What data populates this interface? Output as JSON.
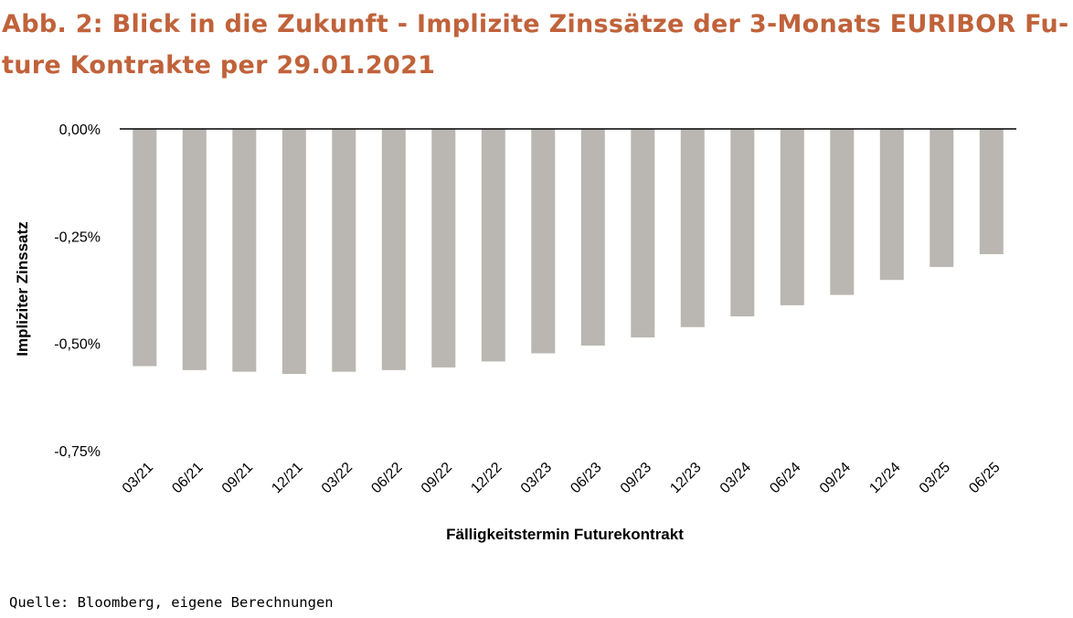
{
  "title_line1": "Abb. 2: Blick in die Zukunft - Implizite Zinssätze der 3-Monats EURIBOR Fu-",
  "title_line2": "ture Kontrakte per 29.01.2021",
  "source": "Quelle: Bloomberg, eigene Berechnungen",
  "colors": {
    "title": "#c0623a",
    "bar": "#bab6b1",
    "axis": "#000000"
  },
  "chart_data": {
    "type": "bar",
    "title": "Abb. 2: Blick in die Zukunft - Implizite Zinssätze der 3-Monats EURIBOR Future Kontrakte per 29.01.2021",
    "xlabel": "Fälligkeitstermin Futurekontrakt",
    "ylabel": "Impliziter Zinssatz",
    "ylim": [
      -0.75,
      0
    ],
    "yticks": [
      0,
      -0.25,
      -0.5,
      -0.75
    ],
    "ytick_labels": [
      "0,00%",
      "-0,25%",
      "-0,50%",
      "-0,75%"
    ],
    "grid": false,
    "legend": "none",
    "categories": [
      "03/21",
      "06/21",
      "09/21",
      "12/21",
      "03/22",
      "06/22",
      "09/22",
      "12/22",
      "03/23",
      "06/23",
      "09/23",
      "12/23",
      "03/24",
      "06/24",
      "09/24",
      "12/24",
      "03/25",
      "06/25"
    ],
    "series": [
      {
        "values": [
          -0.553,
          -0.562,
          -0.566,
          -0.571,
          -0.566,
          -0.562,
          -0.556,
          -0.542,
          -0.523,
          -0.505,
          -0.486,
          -0.462,
          -0.437,
          -0.411,
          -0.387,
          -0.352,
          -0.322,
          -0.292
        ]
      }
    ]
  }
}
